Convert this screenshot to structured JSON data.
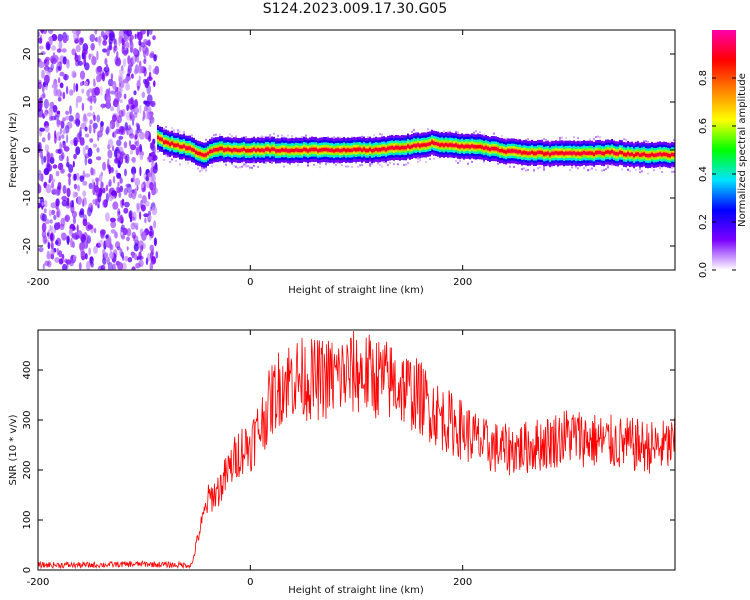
{
  "title": "S124.2023.009.17.30.G05",
  "chart_data": [
    {
      "type": "heatmap",
      "xlabel": "Height of straight line (km)",
      "ylabel": "Frequency (Hz)",
      "xlim": [
        -200,
        400
      ],
      "ylim": [
        -25,
        25
      ],
      "xticks": [
        -200,
        0,
        200
      ],
      "yticks": [
        -20,
        -10,
        0,
        10,
        20
      ],
      "colorbar": {
        "label": "Normalized spectral amplitude",
        "range": [
          0,
          1
        ],
        "ticks": [
          0.0,
          0.2,
          0.4,
          0.6,
          0.8
        ],
        "tick_labels": [
          "0.0",
          "0.2",
          "0.4",
          "0.6",
          "0.8"
        ],
        "colors": [
          "#ffffff",
          "#7a00ff",
          "#0000ff",
          "#00e5ff",
          "#00ff00",
          "#ffff00",
          "#ff8000",
          "#ff0000",
          "#ff00aa"
        ]
      },
      "noise_region_x": [
        -200,
        -88
      ],
      "ridge": {
        "x": [
          -88,
          -80,
          -70,
          -60,
          -50,
          -45,
          -40,
          -30,
          -20,
          0,
          20,
          40,
          60,
          80,
          100,
          120,
          140,
          160,
          170,
          180,
          200,
          220,
          240,
          260,
          280,
          300,
          320,
          340,
          360,
          380,
          400
        ],
        "y": [
          2.5,
          1.5,
          1.0,
          0.5,
          -0.5,
          -1.2,
          -0.5,
          0.3,
          0.0,
          0.0,
          0.0,
          0.0,
          0.0,
          0.0,
          0.0,
          0.0,
          0.5,
          1.0,
          1.5,
          1.0,
          0.8,
          0.5,
          -0.3,
          -0.5,
          -0.8,
          -0.6,
          -0.8,
          -0.5,
          -1.0,
          -1.0,
          -1.0
        ]
      }
    },
    {
      "type": "line",
      "xlabel": "Height of straight line (km)",
      "ylabel": "SNR (10 * v/v)",
      "xlim": [
        -200,
        400
      ],
      "ylim": [
        0,
        480
      ],
      "xticks": [
        -200,
        0,
        200
      ],
      "yticks": [
        0,
        100,
        200,
        300,
        400
      ],
      "series": [
        {
          "color": "#ff0000",
          "x": [
            -200,
            -150,
            -100,
            -70,
            -55,
            -50,
            -45,
            -40,
            -30,
            -20,
            -10,
            0,
            10,
            20,
            30,
            40,
            60,
            80,
            100,
            120,
            140,
            160,
            180,
            200,
            220,
            240,
            260,
            280,
            300,
            320,
            340,
            360,
            380,
            400
          ],
          "y": [
            10,
            10,
            12,
            10,
            10,
            60,
            100,
            140,
            160,
            200,
            240,
            250,
            290,
            340,
            375,
            385,
            380,
            385,
            395,
            385,
            370,
            345,
            305,
            280,
            250,
            240,
            245,
            255,
            270,
            260,
            255,
            250,
            245,
            250
          ]
        }
      ]
    }
  ]
}
